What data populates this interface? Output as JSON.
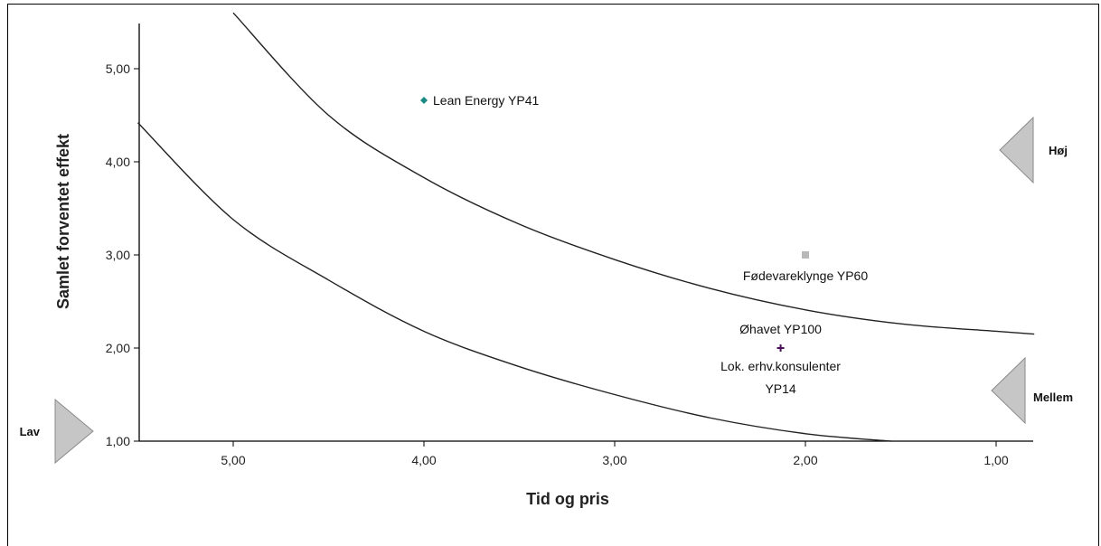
{
  "chart_data": {
    "type": "scatter",
    "xlabel": "Tid og pris",
    "ylabel": "Samlet forventet effekt",
    "xlim": [
      5.55,
      0.8
    ],
    "ylim": [
      1.0,
      5.55
    ],
    "x_reversed": true,
    "x_ticks": [
      "5,00",
      "4,00",
      "3,00",
      "2,00",
      "1,00"
    ],
    "y_ticks": [
      "1,00",
      "2,00",
      "3,00",
      "4,00",
      "5,00"
    ],
    "points": [
      {
        "label": "Lean Energy YP41",
        "x": 4.0,
        "y": 4.66,
        "color": "#1a8a86",
        "marker": "diamond"
      },
      {
        "label": "Fødevareklynge YP60",
        "x": 2.0,
        "y": 3.0,
        "color": "#b8b8b8",
        "marker": "square"
      },
      {
        "label": "Øhavet YP100",
        "x": 2.13,
        "y": 2.0,
        "color": "#4b0f5c",
        "marker": "plus"
      },
      {
        "label": "Lok. erhv.konsulenter",
        "label2": "YP14",
        "x": 2.13,
        "y": 2.0,
        "color": "#4b0f5c",
        "marker": "plus"
      }
    ],
    "curves": [
      {
        "name": "upper",
        "points": [
          [
            5.0,
            5.6
          ],
          [
            4.5,
            4.5
          ],
          [
            4.0,
            3.83
          ],
          [
            3.5,
            3.33
          ],
          [
            3.0,
            2.95
          ],
          [
            2.5,
            2.64
          ],
          [
            2.0,
            2.41
          ],
          [
            1.5,
            2.26
          ],
          [
            1.0,
            2.18
          ],
          [
            0.8,
            2.15
          ]
        ]
      },
      {
        "name": "lower",
        "points": [
          [
            5.5,
            4.42
          ],
          [
            5.0,
            3.38
          ],
          [
            4.5,
            2.73
          ],
          [
            4.0,
            2.18
          ],
          [
            3.5,
            1.8
          ],
          [
            3.0,
            1.5
          ],
          [
            2.5,
            1.25
          ],
          [
            2.0,
            1.08
          ],
          [
            1.55,
            1.0
          ]
        ]
      }
    ],
    "zones": [
      {
        "label": "Høj",
        "side": "right"
      },
      {
        "label": "Mellem",
        "side": "right"
      },
      {
        "label": "Lav",
        "side": "left"
      }
    ],
    "grid": false,
    "legend": "none"
  }
}
